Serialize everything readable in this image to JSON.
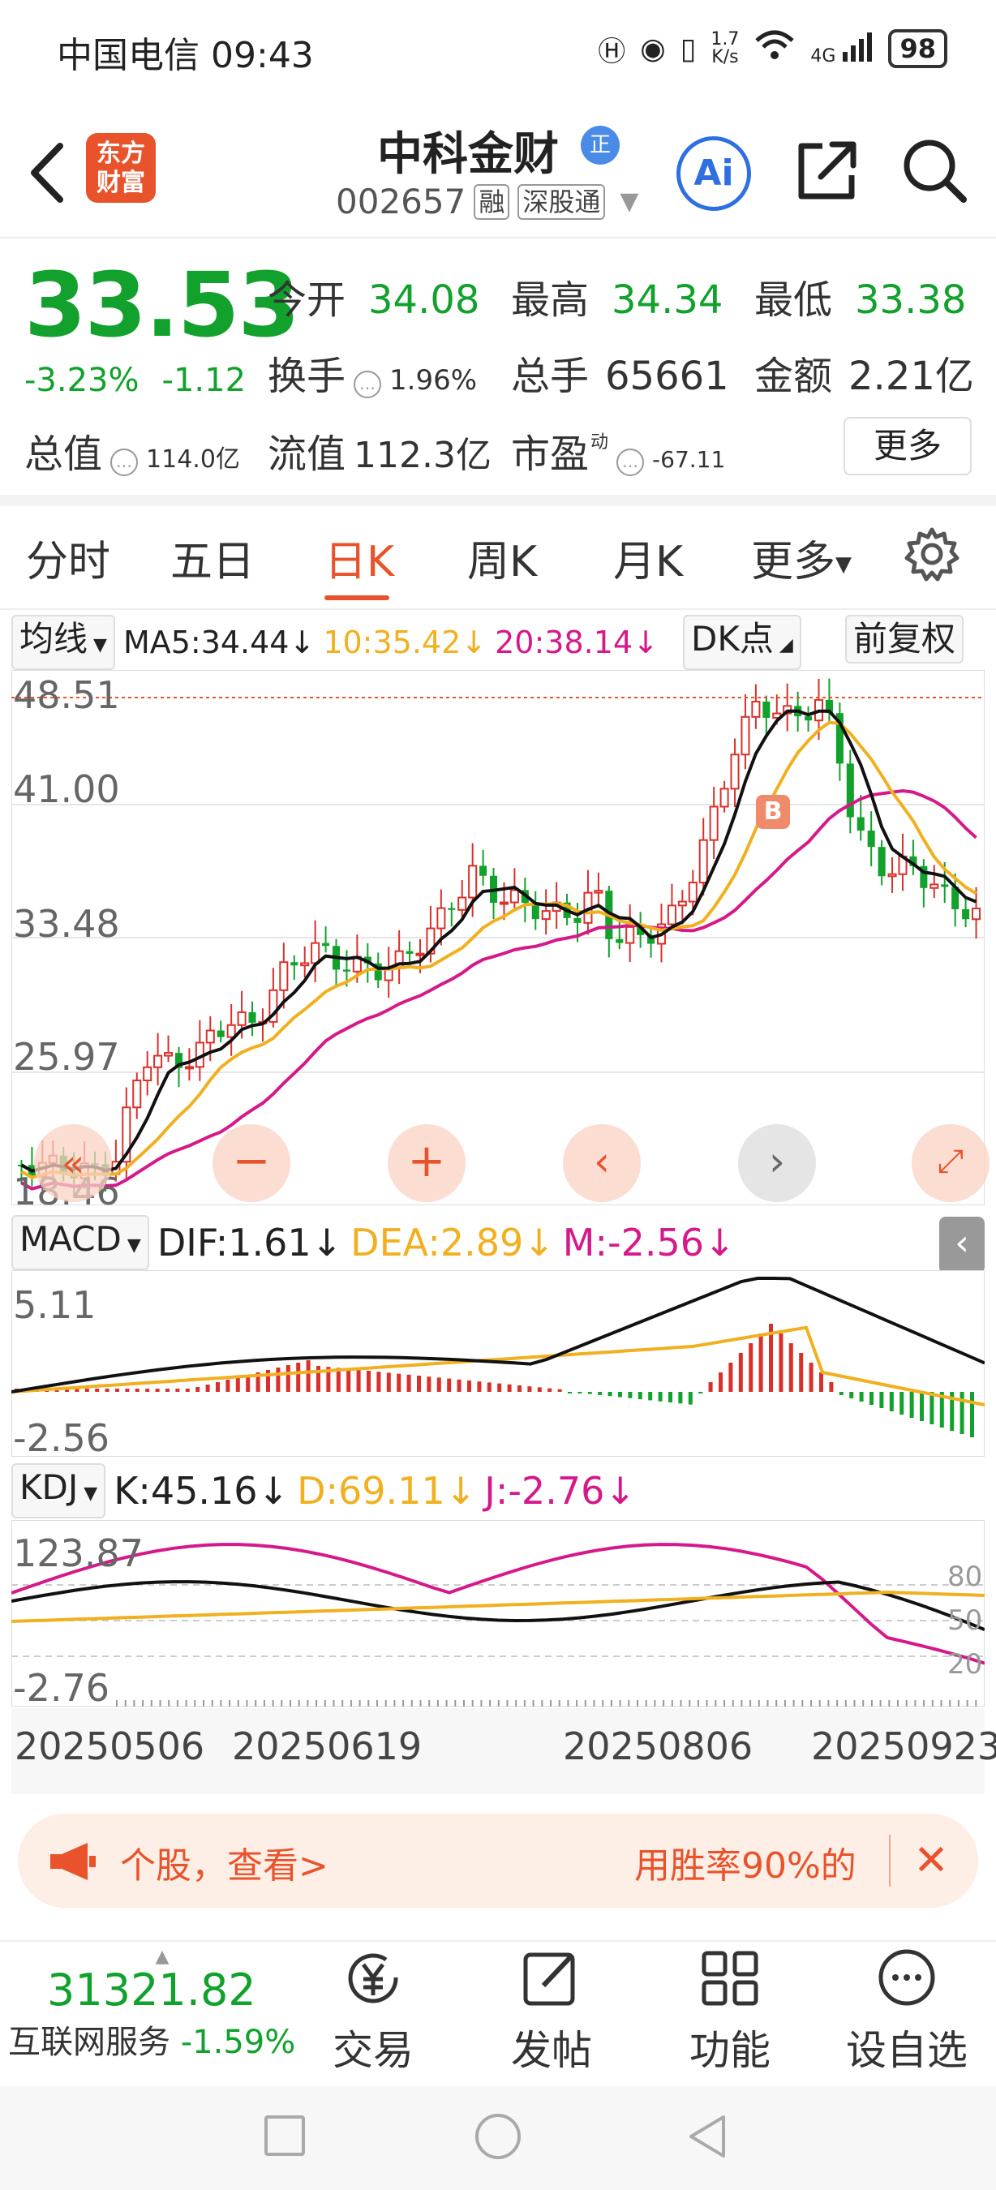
{
  "status_bar": {
    "carrier": "中国电信",
    "time": "09:43",
    "net_speed_top": "1.7",
    "net_speed_unit": "K/s",
    "net_type": "4G",
    "battery": "98"
  },
  "header": {
    "stock_name": "中科金财",
    "verify_badge": "正",
    "stock_code": "002657",
    "tags": [
      "融",
      "深股通"
    ],
    "ai_label": "Ai"
  },
  "logo": {
    "line1": "东方",
    "line2": "财富"
  },
  "quote": {
    "price": "33.53",
    "change_pct": "-3.23%",
    "change_abs": "-1.12",
    "open_label": "今开",
    "open": "34.08",
    "high_label": "最高",
    "high": "34.34",
    "low_label": "最低",
    "low": "33.38",
    "turnover_label": "换手",
    "turnover": "1.96%",
    "volume_label": "总手",
    "volume": "65661",
    "amount_label": "金额",
    "amount": "2.21亿",
    "mktcap_label": "总值",
    "mktcap": "114.0亿",
    "float_label": "流值",
    "float": "112.3亿",
    "pe_label": "市盈",
    "pe_super": "动",
    "pe": "-67.11",
    "more_button": "更多"
  },
  "tabs": [
    {
      "label": "分时"
    },
    {
      "label": "五日"
    },
    {
      "label": "日K"
    },
    {
      "label": "周K"
    },
    {
      "label": "月K"
    },
    {
      "label": "更多"
    }
  ],
  "ma_bar": {
    "selector": "均线",
    "ma5": "MA5:34.44",
    "ma10": "10:35.42",
    "ma20": "20:38.14",
    "dk": "DK点",
    "fq": "前复权"
  },
  "kline_axis": [
    "48.51",
    "41.00",
    "33.48",
    "25.97",
    "18.46"
  ],
  "b_marker": "B",
  "macd": {
    "selector": "MACD",
    "dif": "DIF:1.61",
    "dea": "DEA:2.89",
    "m": "M:-2.56",
    "ymax": "5.11",
    "ymin": "-2.56"
  },
  "kdj": {
    "selector": "KDJ",
    "k": "K:45.16",
    "d": "D:69.11",
    "j": "J:-2.76",
    "ymax": "123.87",
    "ymin": "-2.76",
    "levels": [
      "80",
      "50",
      "20"
    ]
  },
  "dates": [
    "20250506",
    "20250619",
    "20250806",
    "20250923"
  ],
  "banner": {
    "left_text": "个股，查看>",
    "right_text": "用胜率90%的"
  },
  "bottom_nav": {
    "index_value": "31321.82",
    "index_name": "互联网服务",
    "index_change": "-1.59%",
    "items": [
      {
        "label": "交易"
      },
      {
        "label": "发帖"
      },
      {
        "label": "功能"
      },
      {
        "label": "设自选"
      }
    ]
  },
  "colors": {
    "up": "#d9302b",
    "down": "#12a12c",
    "accent": "#e8532b",
    "ma10": "#f0b020",
    "ma20": "#d6198a"
  }
}
